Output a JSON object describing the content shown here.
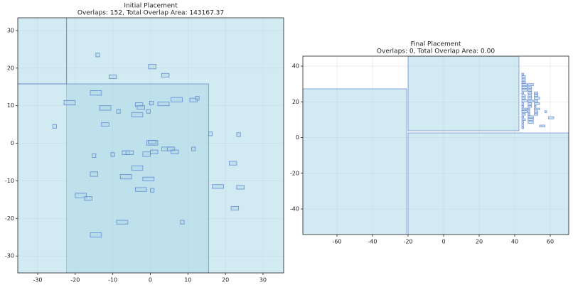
{
  "chart_data": [
    {
      "type": "rectangles",
      "title": "Initial Placement",
      "subtitle": "Overlaps: 152, Total Overlap Area: 143167.37",
      "color": "#add8e6",
      "edgecolor": "#4a6fc9",
      "grid": true,
      "xlim": [
        -35.3,
        35.5
      ],
      "ylim": [
        -34.5,
        33.4
      ],
      "xticks": [
        -30,
        -20,
        -10,
        0,
        10,
        20,
        30
      ],
      "yticks": [
        -30,
        -20,
        -10,
        0,
        10,
        20,
        30
      ],
      "rects": [
        [
          -22.3,
          -40,
          58.4,
          81.6
        ],
        [
          -84.7,
          15.8,
          62.4,
          41.8
        ],
        [
          -74.9,
          -41.1,
          90.4,
          56.9
        ],
        [
          -14.5,
          23,
          1,
          1
        ],
        [
          -0.5,
          19.8,
          2,
          1.2
        ],
        [
          3,
          17.6,
          2,
          1
        ],
        [
          -11,
          17.2,
          2,
          1
        ],
        [
          -16,
          12.8,
          3,
          1.2
        ],
        [
          -23,
          10.2,
          3,
          1.2
        ],
        [
          -13.5,
          8.8,
          3,
          1.2
        ],
        [
          -9,
          8,
          1,
          1
        ],
        [
          -4,
          9.8,
          2,
          1
        ],
        [
          -3.5,
          9,
          2,
          1
        ],
        [
          -5,
          7,
          3,
          1.2
        ],
        [
          -1,
          8,
          1,
          1
        ],
        [
          -0.2,
          10.2,
          1,
          1
        ],
        [
          2,
          10,
          3,
          1
        ],
        [
          5.5,
          11,
          3,
          1.2
        ],
        [
          10.5,
          11,
          2,
          1
        ],
        [
          12,
          11.5,
          1,
          1
        ],
        [
          -13,
          4.5,
          2,
          1
        ],
        [
          -26,
          4,
          1,
          1
        ],
        [
          15.5,
          2,
          1,
          1
        ],
        [
          23,
          1.8,
          1,
          1
        ],
        [
          -1,
          -0.5,
          3,
          1.2
        ],
        [
          -0.5,
          -0.2,
          2,
          1
        ],
        [
          0,
          -2.8,
          2,
          1
        ],
        [
          -2,
          -3.5,
          2,
          1.2
        ],
        [
          -7.5,
          -3,
          2,
          1
        ],
        [
          -6.5,
          -3,
          2,
          1
        ],
        [
          3,
          -2,
          3,
          1
        ],
        [
          4.5,
          -2,
          2,
          1
        ],
        [
          5.5,
          -2.8,
          2,
          1
        ],
        [
          11,
          -2,
          1,
          1
        ],
        [
          -15.5,
          -3.8,
          1,
          1
        ],
        [
          -10.5,
          -3.5,
          1,
          1
        ],
        [
          -5,
          -7.2,
          3,
          1.2
        ],
        [
          -8,
          -9.5,
          3,
          1.2
        ],
        [
          -2,
          -10,
          3,
          1
        ],
        [
          21,
          -5.8,
          2,
          1
        ],
        [
          -16,
          -8.8,
          2,
          1.2
        ],
        [
          -20,
          -14.5,
          3,
          1.2
        ],
        [
          -17.5,
          -15.2,
          2,
          1
        ],
        [
          -4,
          -12.8,
          3,
          1
        ],
        [
          0,
          -13,
          1,
          1
        ],
        [
          16.5,
          -12,
          3,
          1
        ],
        [
          23,
          -12.2,
          2,
          1
        ],
        [
          21.5,
          -17.8,
          2,
          1
        ],
        [
          -9,
          -21.5,
          3,
          1
        ],
        [
          8,
          -21.5,
          1,
          1
        ],
        [
          -16,
          -25,
          3,
          1.2
        ]
      ]
    },
    {
      "type": "rectangles",
      "title": "Final Placement",
      "subtitle": "Overlaps: 0, Total Overlap Area: 0.00",
      "color": "#add8e6",
      "edgecolor": "#4a6fc9",
      "grid": true,
      "xlim": [
        -79.2,
        70.4
      ],
      "ylim": [
        -54.3,
        45.6
      ],
      "xticks": [
        -60,
        -40,
        -20,
        0,
        20,
        40,
        60
      ],
      "yticks": [
        -40,
        -20,
        0,
        20,
        40
      ],
      "rects": [
        [
          -79.2,
          -54.3,
          58.4,
          81.6
        ],
        [
          -20,
          3.8,
          62.4,
          41.8
        ],
        [
          -20,
          -54.3,
          90.4,
          56.9
        ],
        [
          44,
          35,
          1,
          1
        ],
        [
          44,
          33.5,
          2,
          1.2
        ],
        [
          44,
          32,
          2,
          1
        ],
        [
          44,
          30.5,
          2,
          1
        ],
        [
          44,
          29,
          3,
          1.2
        ],
        [
          44,
          27.5,
          3,
          1.2
        ],
        [
          44,
          26,
          3,
          1.2
        ],
        [
          44,
          24.5,
          1,
          1
        ],
        [
          44,
          23,
          2,
          1
        ],
        [
          44,
          21.5,
          2,
          1
        ],
        [
          44,
          20,
          3,
          1.2
        ],
        [
          44,
          18.5,
          1,
          1
        ],
        [
          44,
          17,
          1,
          1
        ],
        [
          44,
          15.5,
          3,
          1
        ],
        [
          44,
          14,
          3,
          1.2
        ],
        [
          44,
          12.5,
          2,
          1
        ],
        [
          44,
          11,
          1,
          1
        ],
        [
          44,
          9.5,
          2,
          1
        ],
        [
          44,
          8,
          1,
          1
        ],
        [
          44,
          6.5,
          1,
          1
        ],
        [
          44,
          5,
          1,
          1
        ],
        [
          47.5,
          29,
          3,
          1.2
        ],
        [
          47.5,
          27.5,
          2,
          1
        ],
        [
          47.5,
          26,
          2,
          1
        ],
        [
          47.5,
          24.5,
          2,
          1.2
        ],
        [
          47.5,
          23,
          2,
          1
        ],
        [
          47.5,
          21.5,
          2,
          1
        ],
        [
          47.5,
          20,
          3,
          1
        ],
        [
          47.5,
          18.5,
          2,
          1
        ],
        [
          47.5,
          17,
          2,
          1
        ],
        [
          47.5,
          15.5,
          1,
          1
        ],
        [
          47.5,
          14,
          1,
          1
        ],
        [
          47.5,
          12.5,
          1,
          1
        ],
        [
          47.5,
          11,
          3,
          1.2
        ],
        [
          47.5,
          9.5,
          3,
          1.2
        ],
        [
          47.5,
          8,
          3,
          1
        ],
        [
          51,
          24.5,
          2,
          1
        ],
        [
          51,
          23,
          2,
          1.2
        ],
        [
          51,
          21.5,
          3,
          1.2
        ],
        [
          51,
          20,
          2,
          1
        ],
        [
          51,
          18.5,
          3,
          1
        ],
        [
          51,
          17,
          1,
          1
        ],
        [
          51,
          15.5,
          3,
          1
        ],
        [
          51,
          14,
          2,
          1
        ],
        [
          51,
          12.5,
          2,
          1
        ],
        [
          54,
          6,
          3,
          1
        ],
        [
          57,
          14,
          1,
          1
        ],
        [
          59,
          10.5,
          3,
          1.2
        ]
      ]
    }
  ]
}
